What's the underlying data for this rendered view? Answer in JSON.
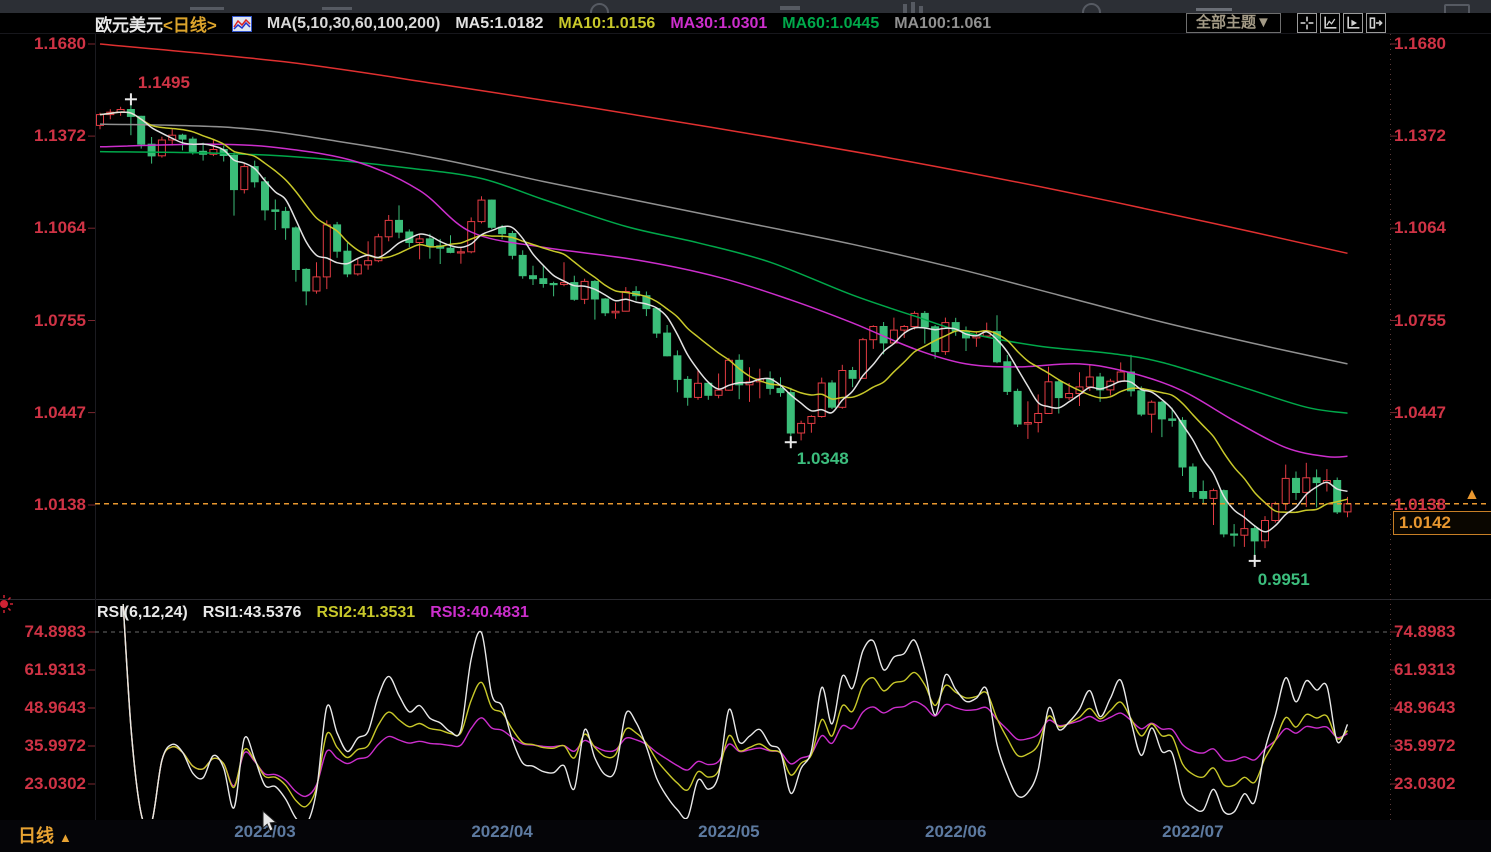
{
  "colors": {
    "up": "#e23b43",
    "down": "#3bbd79",
    "ma5": "#e2e2e2",
    "ma10": "#c8c82a",
    "ma30": "#cc2ecc",
    "ma60": "#00a84a",
    "ma100": "#909090",
    "ma200": "#e03030",
    "axis_text": "#cf3345",
    "accent_orange": "#e8972f",
    "annotation_green": "#3cbd7d",
    "x_label_blue": "#5d7aa0",
    "rsi1": "#e8e8e8",
    "rsi2": "#c8c82a",
    "rsi3": "#cc2ecc"
  },
  "header": {
    "title": "欧元美元",
    "period": "<日线>",
    "indicator_icon": "ma-indicator-icon",
    "ma_group_label": "MA(5,10,30,60,100,200)",
    "ma_items": [
      {
        "text": "MA5:1.0182",
        "color": "#e2e2e2"
      },
      {
        "text": "MA10:1.0156",
        "color": "#c8c82a"
      },
      {
        "text": "MA30:1.0301",
        "color": "#cc2ecc"
      },
      {
        "text": "MA60:1.0445",
        "color": "#00a84a"
      },
      {
        "text": "MA100:1.061",
        "color": "#909090"
      }
    ],
    "theme_button": "全部主题▼",
    "toolbar_icons": [
      "crosshair-icon",
      "scale-axis-icon",
      "pointer-axis-icon",
      "collapse-pane-icon"
    ]
  },
  "main_chart": {
    "y_labels": [
      "1.1680",
      "1.1372",
      "1.1064",
      "1.0755",
      "1.0447",
      "1.0138"
    ],
    "annotations": {
      "high": {
        "text": "1.1495",
        "idx": 3,
        "price": 1.1495
      },
      "low1": {
        "text": "1.0348",
        "idx": 67,
        "price": 1.0348
      },
      "low2": {
        "text": "0.9951",
        "idx": 112,
        "price": 0.9951
      }
    },
    "last_price": {
      "text": "1.0142",
      "value": 1.0142,
      "arrow": "▲"
    }
  },
  "rsi_panel": {
    "label": "RSI(6,12,24)",
    "items": [
      {
        "text": "RSI1:43.5376",
        "color": "#e8e8e8"
      },
      {
        "text": "RSI2:41.3531",
        "color": "#c8c82a"
      },
      {
        "text": "RSI3:40.4831",
        "color": "#cc2ecc"
      }
    ],
    "y_labels": [
      "74.8983",
      "61.9313",
      "48.9643",
      "35.9972",
      "23.0302"
    ],
    "overbought_level": 74.8983
  },
  "x_axis": {
    "ticks": [
      {
        "label": "2022/03",
        "idx": 16
      },
      {
        "label": "2022/04",
        "idx": 39
      },
      {
        "label": "2022/05",
        "idx": 61
      },
      {
        "label": "2022/06",
        "idx": 83
      },
      {
        "label": "2022/07",
        "idx": 106
      }
    ]
  },
  "footer": {
    "period": "日线",
    "arrow": "▲"
  },
  "chart_data": {
    "type": "candlestick",
    "symbol": "欧元美元 (EUR/USD)",
    "timeframe": "daily",
    "price_axis": {
      "top_value": 1.168,
      "bottom_value": 1.0138,
      "labels": [
        1.168,
        1.1372,
        1.1064,
        1.0755,
        1.0447,
        1.0138
      ]
    },
    "rsi_axis": {
      "labels": [
        74.8983,
        61.9313,
        48.9643,
        35.9972,
        23.0302
      ]
    },
    "computed_series": {
      "sma_windows": [
        5,
        10
      ],
      "rsi_periods": [
        6,
        12,
        24
      ]
    },
    "candles": [
      [
        1.1408,
        1.145,
        1.1395,
        1.1444
      ],
      [
        1.1444,
        1.1462,
        1.1428,
        1.1452
      ],
      [
        1.1452,
        1.147,
        1.144,
        1.1461
      ],
      [
        1.1461,
        1.1495,
        1.1375,
        1.1438
      ],
      [
        1.1438,
        1.144,
        1.133,
        1.1345
      ],
      [
        1.1345,
        1.1369,
        1.128,
        1.1306
      ],
      [
        1.1306,
        1.137,
        1.13,
        1.1359
      ],
      [
        1.1359,
        1.1395,
        1.134,
        1.1375
      ],
      [
        1.1375,
        1.138,
        1.1324,
        1.1362
      ],
      [
        1.1362,
        1.137,
        1.131,
        1.1321
      ],
      [
        1.1321,
        1.135,
        1.129,
        1.1311
      ],
      [
        1.1311,
        1.136,
        1.1305,
        1.1327
      ],
      [
        1.1327,
        1.134,
        1.1287,
        1.1307
      ],
      [
        1.1307,
        1.1317,
        1.1106,
        1.1193
      ],
      [
        1.1193,
        1.128,
        1.118,
        1.127
      ],
      [
        1.127,
        1.129,
        1.12,
        1.1219
      ],
      [
        1.1219,
        1.1235,
        1.109,
        1.1125
      ],
      [
        1.1125,
        1.116,
        1.1058,
        1.112
      ],
      [
        1.112,
        1.1135,
        1.1025,
        1.1065
      ],
      [
        1.1065,
        1.107,
        1.0885,
        1.0926
      ],
      [
        1.0926,
        1.093,
        1.0806,
        1.0854
      ],
      [
        1.0854,
        1.095,
        1.0845,
        1.0901
      ],
      [
        1.0901,
        1.109,
        1.086,
        1.1075
      ],
      [
        1.1075,
        1.1085,
        1.0965,
        1.0987
      ],
      [
        1.0987,
        1.1015,
        1.09,
        1.0911
      ],
      [
        1.0911,
        1.0965,
        1.0905,
        1.0941
      ],
      [
        1.0941,
        1.102,
        1.0925,
        1.0955
      ],
      [
        1.0955,
        1.1045,
        1.095,
        1.1035
      ],
      [
        1.1035,
        1.1108,
        1.102,
        1.109
      ],
      [
        1.109,
        1.114,
        1.103,
        1.1051
      ],
      [
        1.1051,
        1.106,
        1.1,
        1.1016
      ],
      [
        1.1016,
        1.1046,
        1.096,
        1.1028
      ],
      [
        1.1028,
        1.1045,
        1.0962,
        1.1005
      ],
      [
        1.1005,
        1.1028,
        1.0944,
        1.0997
      ],
      [
        1.0997,
        1.104,
        1.098,
        1.0983
      ],
      [
        1.0983,
        1.1,
        1.0945,
        1.0985
      ],
      [
        1.0985,
        1.11,
        1.098,
        1.1086
      ],
      [
        1.1086,
        1.1171,
        1.108,
        1.1158
      ],
      [
        1.1158,
        1.116,
        1.106,
        1.1067
      ],
      [
        1.1067,
        1.1075,
        1.1027,
        1.1046
      ],
      [
        1.1046,
        1.1055,
        1.096,
        1.0973
      ],
      [
        1.0973,
        1.099,
        1.0895,
        1.0905
      ],
      [
        1.0905,
        1.0938,
        1.0874,
        1.0895
      ],
      [
        1.0895,
        1.094,
        1.0865,
        1.0879
      ],
      [
        1.0879,
        1.0885,
        1.0836,
        1.0876
      ],
      [
        1.0876,
        1.095,
        1.087,
        1.0882
      ],
      [
        1.0882,
        1.0905,
        1.0821,
        1.0826
      ],
      [
        1.0826,
        1.0895,
        1.081,
        1.0886
      ],
      [
        1.0886,
        1.089,
        1.0758,
        1.0827
      ],
      [
        1.0827,
        1.083,
        1.077,
        1.0781
      ],
      [
        1.0781,
        1.0815,
        1.0761,
        1.0786
      ],
      [
        1.0786,
        1.0867,
        1.0785,
        1.0852
      ],
      [
        1.0852,
        1.087,
        1.0822,
        1.0838
      ],
      [
        1.0838,
        1.0852,
        1.077,
        1.0795
      ],
      [
        1.0795,
        1.08,
        1.0697,
        1.0713
      ],
      [
        1.0713,
        1.074,
        1.0635,
        1.0637
      ],
      [
        1.0637,
        1.0655,
        1.0515,
        1.0558
      ],
      [
        1.0558,
        1.0569,
        1.047,
        1.0498
      ],
      [
        1.0498,
        1.0593,
        1.049,
        1.0545
      ],
      [
        1.0545,
        1.0551,
        1.049,
        1.0505
      ],
      [
        1.0505,
        1.0578,
        1.0495,
        1.0522
      ],
      [
        1.0522,
        1.063,
        1.052,
        1.0622
      ],
      [
        1.0622,
        1.0642,
        1.0492,
        1.054
      ],
      [
        1.054,
        1.0599,
        1.0483,
        1.055
      ],
      [
        1.055,
        1.0594,
        1.0495,
        1.056
      ],
      [
        1.056,
        1.0585,
        1.0507,
        1.0528
      ],
      [
        1.0528,
        1.0565,
        1.05,
        1.0514
      ],
      [
        1.0514,
        1.053,
        1.0348,
        1.0379
      ],
      [
        1.0379,
        1.042,
        1.0354,
        1.0411
      ],
      [
        1.0411,
        1.0438,
        1.038,
        1.0434
      ],
      [
        1.0434,
        1.0564,
        1.043,
        1.0546
      ],
      [
        1.0546,
        1.0555,
        1.0459,
        1.0465
      ],
      [
        1.0465,
        1.0607,
        1.046,
        1.0588
      ],
      [
        1.0588,
        1.06,
        1.0532,
        1.0562
      ],
      [
        1.0562,
        1.0697,
        1.056,
        1.0691
      ],
      [
        1.0691,
        1.0739,
        1.066,
        1.0735
      ],
      [
        1.0735,
        1.075,
        1.0642,
        1.068
      ],
      [
        1.068,
        1.0765,
        1.0675,
        1.0723
      ],
      [
        1.0723,
        1.074,
        1.0697,
        1.0735
      ],
      [
        1.0735,
        1.0786,
        1.0725,
        1.0779
      ],
      [
        1.0779,
        1.0787,
        1.0678,
        1.0734
      ],
      [
        1.0734,
        1.074,
        1.0627,
        1.0651
      ],
      [
        1.0651,
        1.0765,
        1.064,
        1.0748
      ],
      [
        1.0748,
        1.0764,
        1.0704,
        1.072
      ],
      [
        1.072,
        1.0735,
        1.0653,
        1.0697
      ],
      [
        1.0697,
        1.0715,
        1.0667,
        1.0703
      ],
      [
        1.0703,
        1.0748,
        1.07,
        1.0718
      ],
      [
        1.0718,
        1.0773,
        1.0612,
        1.0617
      ],
      [
        1.0617,
        1.064,
        1.0506,
        1.0518
      ],
      [
        1.0518,
        1.0527,
        1.0399,
        1.0409
      ],
      [
        1.0409,
        1.0485,
        1.0359,
        1.0414
      ],
      [
        1.0414,
        1.0508,
        1.0381,
        1.0444
      ],
      [
        1.0444,
        1.0601,
        1.0443,
        1.055
      ],
      [
        1.055,
        1.0557,
        1.0444,
        1.0497
      ],
      [
        1.0497,
        1.0546,
        1.0489,
        1.0511
      ],
      [
        1.0511,
        1.0582,
        1.0469,
        1.0533
      ],
      [
        1.0533,
        1.0605,
        1.052,
        1.0566
      ],
      [
        1.0566,
        1.058,
        1.0483,
        1.0523
      ],
      [
        1.0523,
        1.056,
        1.0504,
        1.0552
      ],
      [
        1.0552,
        1.0615,
        1.0548,
        1.0583
      ],
      [
        1.0583,
        1.064,
        1.0501,
        1.052
      ],
      [
        1.052,
        1.0535,
        1.0435,
        1.0442
      ],
      [
        1.0442,
        1.0488,
        1.038,
        1.0482
      ],
      [
        1.0482,
        1.0486,
        1.0365,
        1.0426
      ],
      [
        1.0426,
        1.0463,
        1.04,
        1.0421
      ],
      [
        1.0421,
        1.0432,
        1.0235,
        1.0265
      ],
      [
        1.0265,
        1.0277,
        1.0162,
        1.0183
      ],
      [
        1.0183,
        1.022,
        1.0144,
        1.016
      ],
      [
        1.016,
        1.0193,
        1.0071,
        1.0186
      ],
      [
        1.0186,
        1.019,
        1.003,
        1.0041
      ],
      [
        1.0041,
        1.0074,
        0.9999,
        1.0037
      ],
      [
        1.0037,
        1.0122,
        0.9998,
        1.0059
      ],
      [
        1.0059,
        1.007,
        0.9951,
        1.0018
      ],
      [
        1.0018,
        1.0101,
        0.9994,
        1.0086
      ],
      [
        1.0086,
        1.0149,
        1.0079,
        1.0143
      ],
      [
        1.0143,
        1.0273,
        1.0121,
        1.0227
      ],
      [
        1.0227,
        1.025,
        1.0155,
        1.018
      ],
      [
        1.018,
        1.0279,
        1.0131,
        1.0229
      ],
      [
        1.0229,
        1.0257,
        1.013,
        1.0213
      ],
      [
        1.0213,
        1.0258,
        1.0183,
        1.022
      ],
      [
        1.022,
        1.023,
        1.0108,
        1.0115
      ],
      [
        1.0115,
        1.0165,
        1.0097,
        1.0142
      ]
    ],
    "ma_overlays": [
      {
        "name": "MA200",
        "color": "#e03030",
        "points": [
          [
            0,
            1.168
          ],
          [
            18,
            1.162
          ],
          [
            33,
            1.1545
          ],
          [
            48,
            1.1465
          ],
          [
            63,
            1.138
          ],
          [
            78,
            1.129
          ],
          [
            93,
            1.119
          ],
          [
            108,
            1.108
          ],
          [
            121,
            1.098
          ]
        ]
      },
      {
        "name": "MA100",
        "color": "#909090",
        "points": [
          [
            0,
            1.1412
          ],
          [
            13,
            1.14
          ],
          [
            23,
            1.1355
          ],
          [
            33,
            1.1295
          ],
          [
            43,
            1.122
          ],
          [
            53,
            1.115
          ],
          [
            63,
            1.108
          ],
          [
            73,
            1.101
          ],
          [
            83,
            1.093
          ],
          [
            93,
            1.084
          ],
          [
            103,
            1.075
          ],
          [
            113,
            1.067
          ],
          [
            121,
            1.061
          ]
        ]
      },
      {
        "name": "MA60",
        "color": "#00a84a",
        "points": [
          [
            0,
            1.132
          ],
          [
            11,
            1.1315
          ],
          [
            20,
            1.13
          ],
          [
            30,
            1.1265
          ],
          [
            37,
            1.123
          ],
          [
            43,
            1.116
          ],
          [
            51,
            1.107
          ],
          [
            58,
            1.1015
          ],
          [
            65,
            1.095
          ],
          [
            73,
            1.084
          ],
          [
            79,
            1.077
          ],
          [
            84,
            1.0715
          ],
          [
            91,
            1.067
          ],
          [
            98,
            1.0645
          ],
          [
            103,
            1.0615
          ],
          [
            111,
            1.053
          ],
          [
            117,
            1.0465
          ],
          [
            121,
            1.0445
          ]
        ]
      },
      {
        "name": "MA30",
        "color": "#cc2ecc",
        "points": [
          [
            0,
            1.1336
          ],
          [
            11,
            1.1345
          ],
          [
            18,
            1.133
          ],
          [
            25,
            1.1285
          ],
          [
            31,
            1.119
          ],
          [
            36,
            1.1051
          ],
          [
            43,
            1.1
          ],
          [
            52,
            1.0958
          ],
          [
            60,
            1.09
          ],
          [
            67,
            1.0824
          ],
          [
            73,
            1.0747
          ],
          [
            79,
            1.066
          ],
          [
            84,
            1.061
          ],
          [
            89,
            1.06
          ],
          [
            95,
            1.061
          ],
          [
            100,
            1.058
          ],
          [
            105,
            1.052
          ],
          [
            110,
            1.042
          ],
          [
            115,
            1.033
          ],
          [
            119,
            1.03
          ],
          [
            121,
            1.0301
          ]
        ]
      }
    ]
  }
}
